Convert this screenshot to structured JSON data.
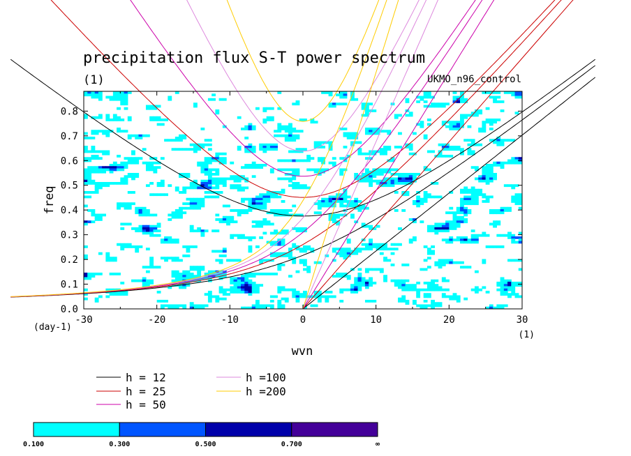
{
  "chart_data": {
    "type": "heatmap",
    "title": "precipitation flux S-T power spectrum",
    "subtitle_left": "(1)",
    "subtitle_right": "UKMO_n96_control",
    "xlabel": "wvn",
    "ylabel": "freq",
    "x_unit": "(1)",
    "y_unit": "(day-1)",
    "xlim": [
      -30,
      30
    ],
    "ylim": [
      0.0,
      0.88
    ],
    "x_ticks": [
      -30,
      -20,
      -10,
      0,
      10,
      20,
      30
    ],
    "x_tick_labels": [
      "-30",
      "-20",
      "-10",
      "0",
      "10",
      "20",
      "30"
    ],
    "y_ticks": [
      0.0,
      0.1,
      0.2,
      0.3,
      0.4,
      0.5,
      0.6,
      0.7,
      0.8
    ],
    "y_tick_labels": [
      "0.0",
      "0.1",
      "0.2",
      "0.3",
      "0.4",
      "0.5",
      "0.6",
      "0.7",
      "0.8"
    ],
    "dispersion_curves": [
      {
        "label": "h = 12",
        "h": 12,
        "color": "#000000"
      },
      {
        "label": "h = 25",
        "h": 25,
        "color": "#cc0000"
      },
      {
        "label": "h = 50",
        "h": 50,
        "color": "#cc00aa"
      },
      {
        "label": "h =100",
        "h": 100,
        "color": "#dd88dd"
      },
      {
        "label": "h =200",
        "h": 200,
        "color": "#ffcc00"
      }
    ],
    "colorbar": {
      "levels": [
        "0.100",
        "0.300",
        "0.500",
        "0.700",
        "∞"
      ],
      "colors": [
        "#00ffff",
        "#0055ff",
        "#0000aa",
        "#440099"
      ]
    },
    "contour_seed": 7
  }
}
